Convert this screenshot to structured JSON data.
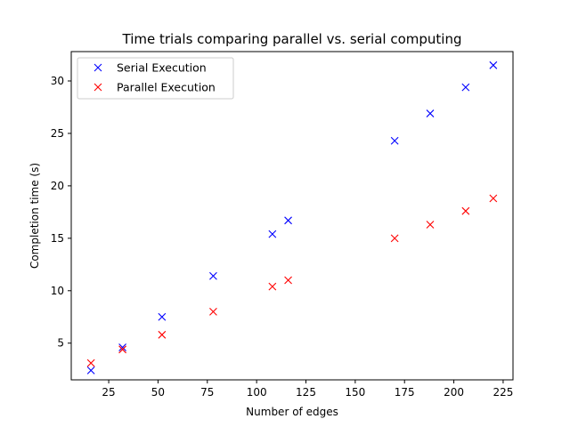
{
  "chart_data": {
    "type": "scatter",
    "title": "Time trials comparing parallel vs. serial computing",
    "xlabel": "Number of edges",
    "ylabel": "Completion time (s)",
    "xlim": [
      6,
      230
    ],
    "ylim": [
      1.5,
      32.8
    ],
    "xticks": [
      25,
      50,
      75,
      100,
      125,
      150,
      175,
      200,
      225
    ],
    "yticks": [
      5,
      10,
      15,
      20,
      25,
      30
    ],
    "grid": false,
    "legend_position": "top-left",
    "marker": "x",
    "series": [
      {
        "name": "Serial Execution",
        "color": "#0000ff",
        "x": [
          16,
          32,
          52,
          78,
          108,
          116,
          170,
          188,
          206,
          220
        ],
        "y": [
          2.4,
          4.6,
          7.5,
          11.4,
          15.4,
          16.7,
          24.3,
          26.9,
          29.4,
          31.5
        ]
      },
      {
        "name": "Parallel Execution",
        "color": "#ff0000",
        "x": [
          16,
          32,
          52,
          78,
          108,
          116,
          170,
          188,
          206,
          220
        ],
        "y": [
          3.1,
          4.4,
          5.8,
          8.0,
          10.4,
          11.0,
          15.0,
          16.3,
          17.6,
          18.8
        ]
      }
    ]
  }
}
